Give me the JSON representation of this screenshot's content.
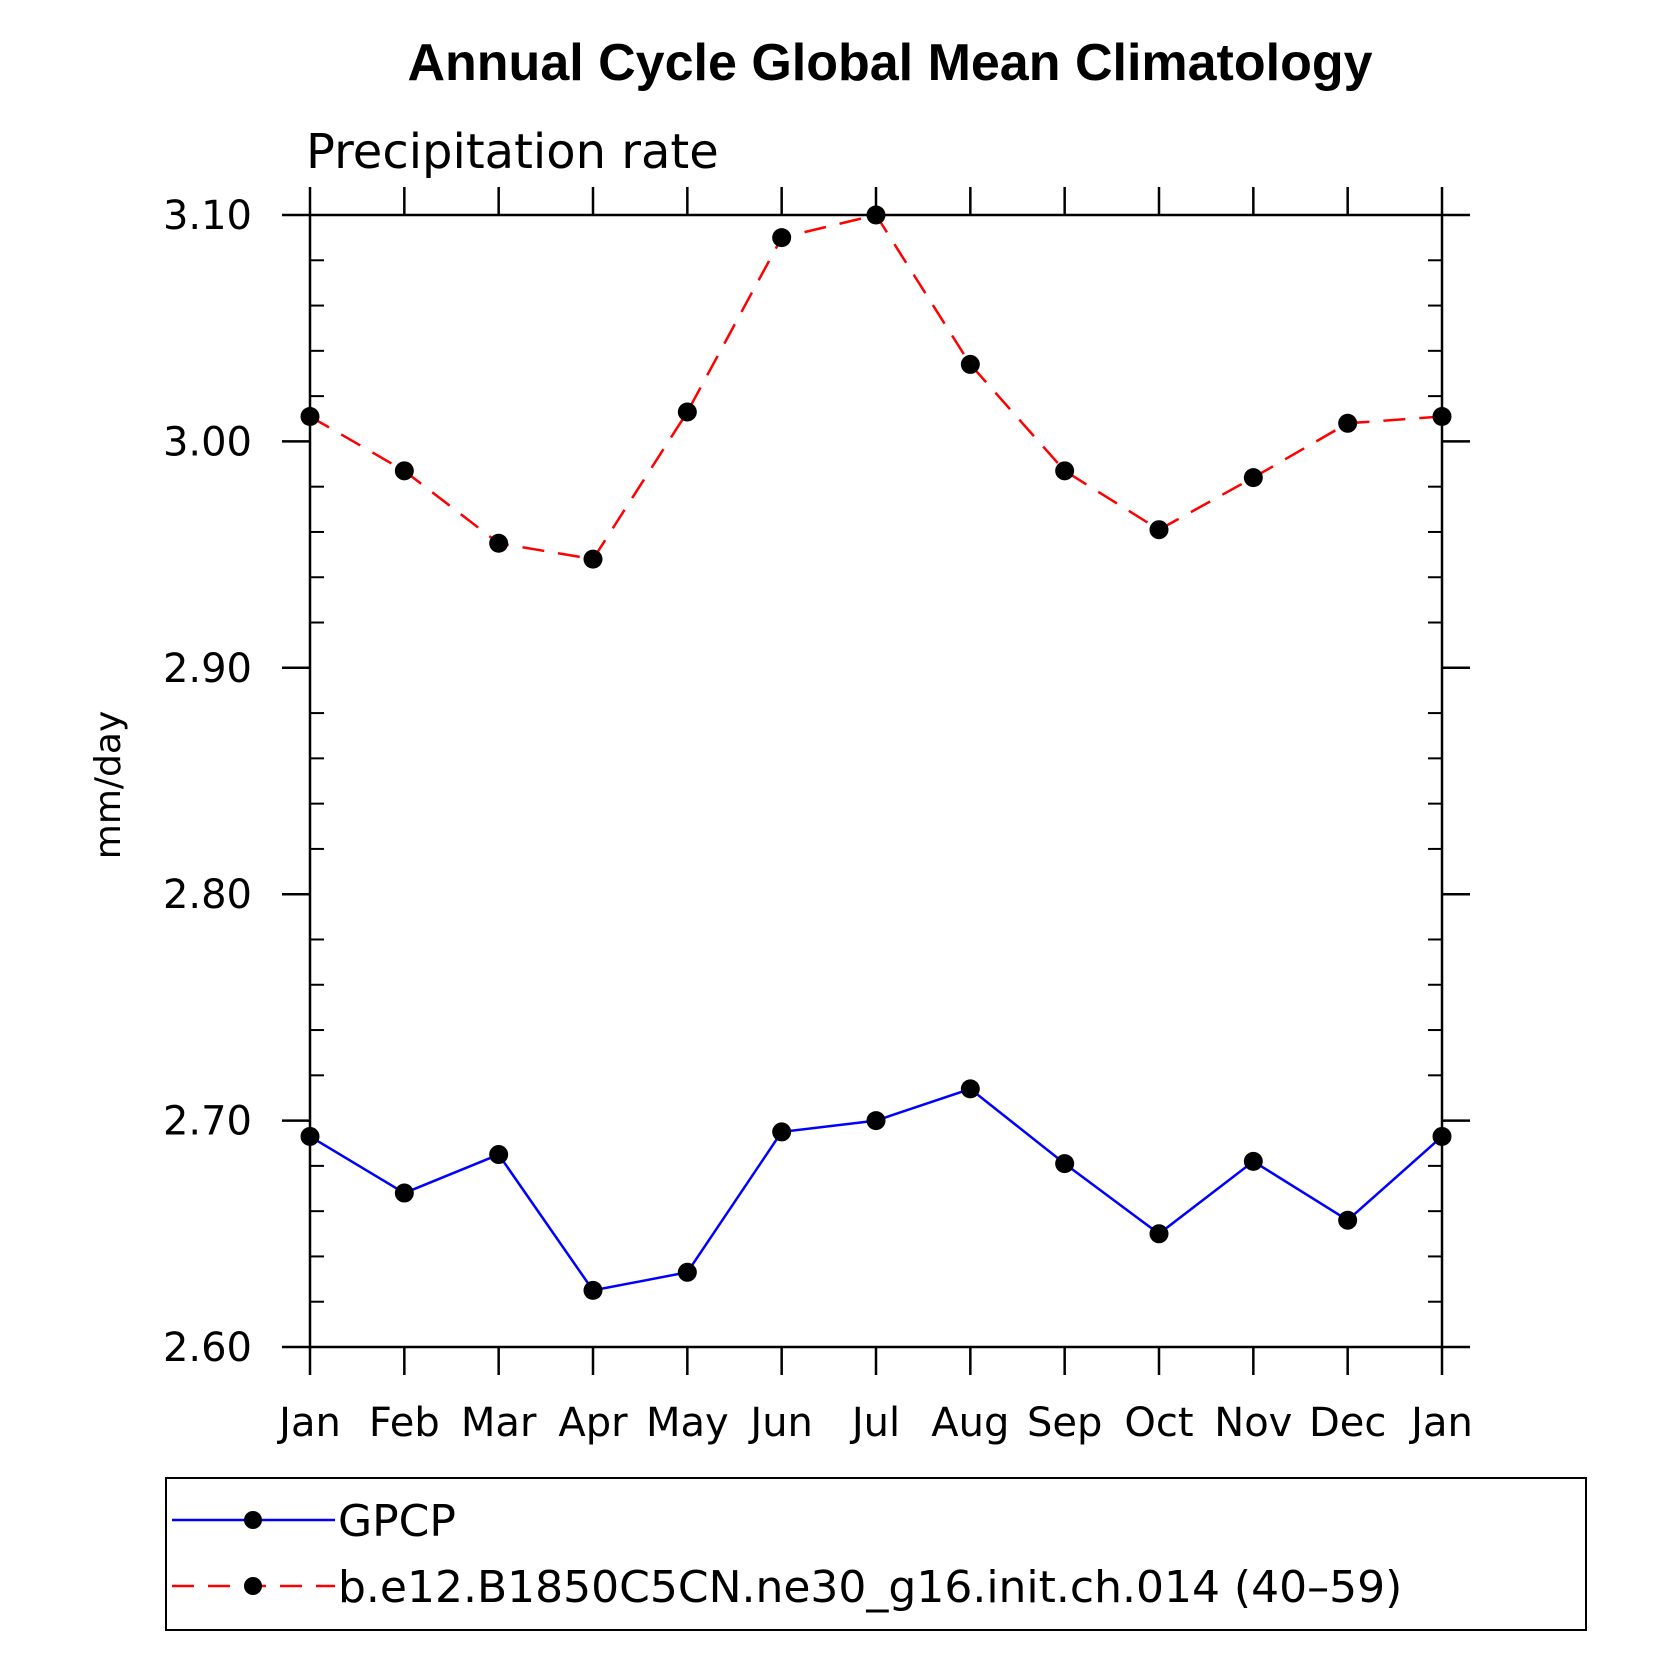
{
  "chart_data": {
    "type": "line",
    "title": "Annual Cycle Global Mean Climatology",
    "subtitle": "Precipitation rate",
    "xlabel": "",
    "ylabel": "mm/day",
    "categories": [
      "Jan",
      "Feb",
      "Mar",
      "Apr",
      "May",
      "Jun",
      "Jul",
      "Aug",
      "Sep",
      "Oct",
      "Nov",
      "Dec",
      "Jan"
    ],
    "ylim": [
      2.6,
      3.1
    ],
    "yticks": [
      "2.60",
      "2.70",
      "2.80",
      "2.90",
      "3.00",
      "3.10"
    ],
    "ytick_values": [
      2.6,
      2.7,
      2.8,
      2.9,
      3.0,
      3.1
    ],
    "grid": false,
    "legend_position": "bottom",
    "series": [
      {
        "name": "GPCP",
        "color": "#0000ff",
        "dash": "solid",
        "marker": "circle",
        "values": [
          2.693,
          2.668,
          2.685,
          2.625,
          2.633,
          2.695,
          2.7,
          2.714,
          2.681,
          2.65,
          2.682,
          2.656,
          2.693
        ]
      },
      {
        "name": "b.e12.B1850C5CN.ne30_g16.init.ch.014 (40–59)",
        "color": "#ff0000",
        "dash": "dashed",
        "marker": "circle",
        "values": [
          3.011,
          2.987,
          2.955,
          2.948,
          3.013,
          3.09,
          3.1,
          3.034,
          2.987,
          2.961,
          2.984,
          3.008,
          3.011
        ]
      }
    ]
  }
}
